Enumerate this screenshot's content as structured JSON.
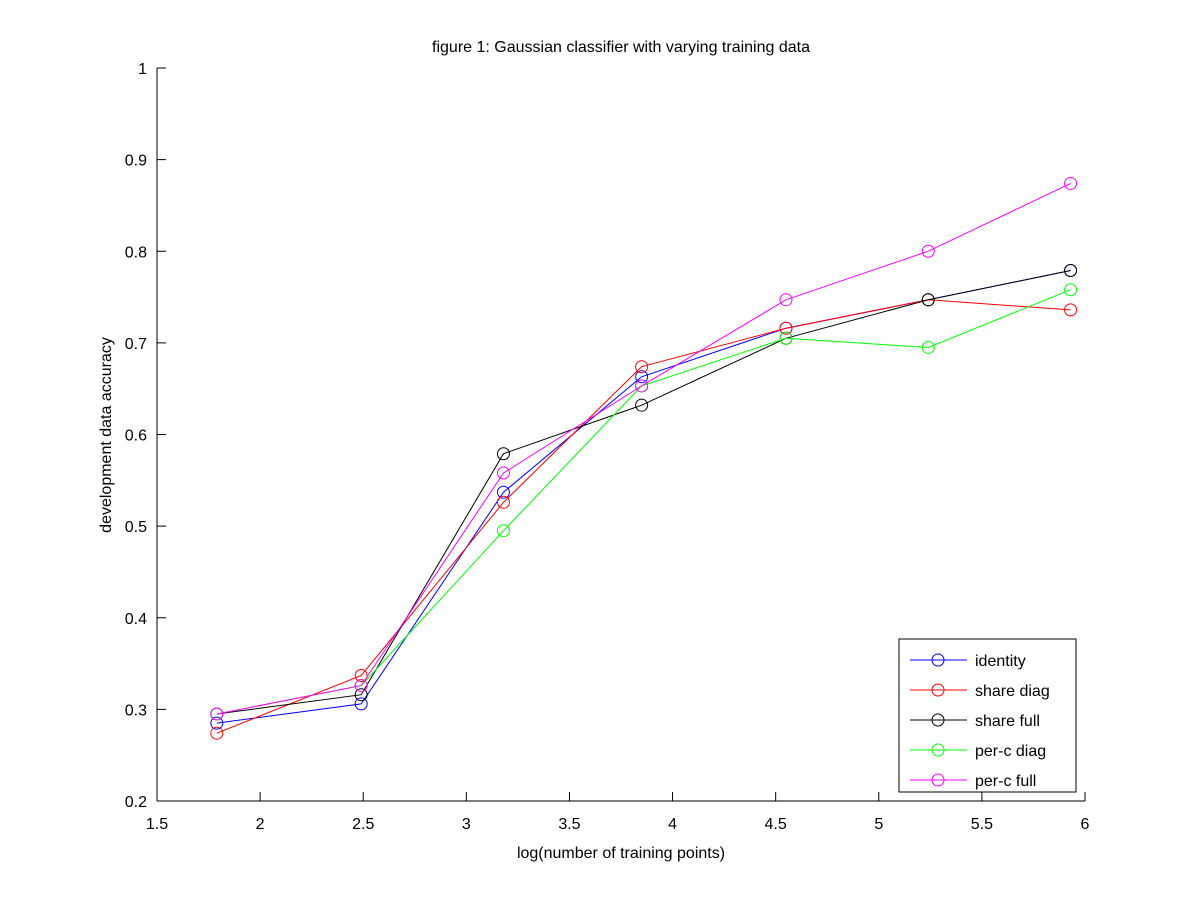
{
  "chart_data": {
    "type": "line",
    "title": "figure 1: Gaussian classifier with varying training data",
    "xlabel": "log(number of training points)",
    "ylabel": "development data accuracy",
    "xlim": [
      1.5,
      6
    ],
    "ylim": [
      0.2,
      1
    ],
    "xticks": [
      "1.5",
      "2",
      "2.5",
      "3",
      "3.5",
      "4",
      "4.5",
      "5",
      "5.5",
      "6"
    ],
    "yticks": [
      "0.2",
      "0.3",
      "0.4",
      "0.5",
      "0.6",
      "0.7",
      "0.8",
      "0.9",
      "1"
    ],
    "grid": false,
    "legend_position": "bottom-right",
    "x": [
      1.79,
      2.49,
      3.18,
      3.85,
      4.55,
      5.24,
      5.93
    ],
    "series": [
      {
        "name": "identity",
        "color": "#0000ff",
        "values": [
          0.285,
          0.306,
          0.537,
          0.663,
          0.716,
          0.747,
          0.779
        ]
      },
      {
        "name": "share diag",
        "color": "#ff0000",
        "values": [
          0.274,
          0.337,
          0.526,
          0.674,
          0.716,
          0.747,
          0.736
        ]
      },
      {
        "name": "share full",
        "color": "#000000",
        "values": [
          0.295,
          0.316,
          0.579,
          0.632,
          0.705,
          0.747,
          0.779
        ]
      },
      {
        "name": "per-c diag",
        "color": "#00ff00",
        "values": [
          0.295,
          0.326,
          0.495,
          0.653,
          0.705,
          0.695,
          0.758
        ]
      },
      {
        "name": "per-c full",
        "color": "#ff00ff",
        "values": [
          0.295,
          0.326,
          0.558,
          0.653,
          0.747,
          0.8,
          0.874
        ]
      }
    ]
  }
}
